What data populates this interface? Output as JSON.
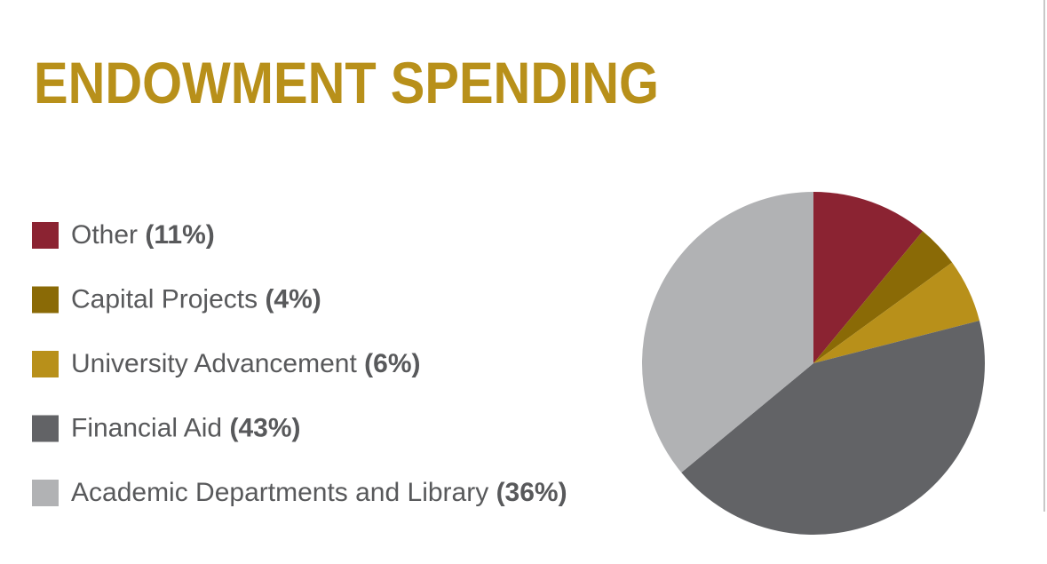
{
  "chart_data": {
    "type": "pie",
    "title": "ENDOWMENT SPENDING",
    "categories": [
      "Other",
      "Capital Projects",
      "University Advancement",
      "Financial Aid",
      "Academic Departments and Library"
    ],
    "values": [
      11,
      4,
      6,
      43,
      36
    ],
    "value_labels": [
      "(11%)",
      "(4%)",
      "(6%)",
      "(43%)",
      "(36%)"
    ],
    "colors": [
      "#8b2332",
      "#8a6a06",
      "#b8901a",
      "#626366",
      "#b1b2b4"
    ]
  }
}
